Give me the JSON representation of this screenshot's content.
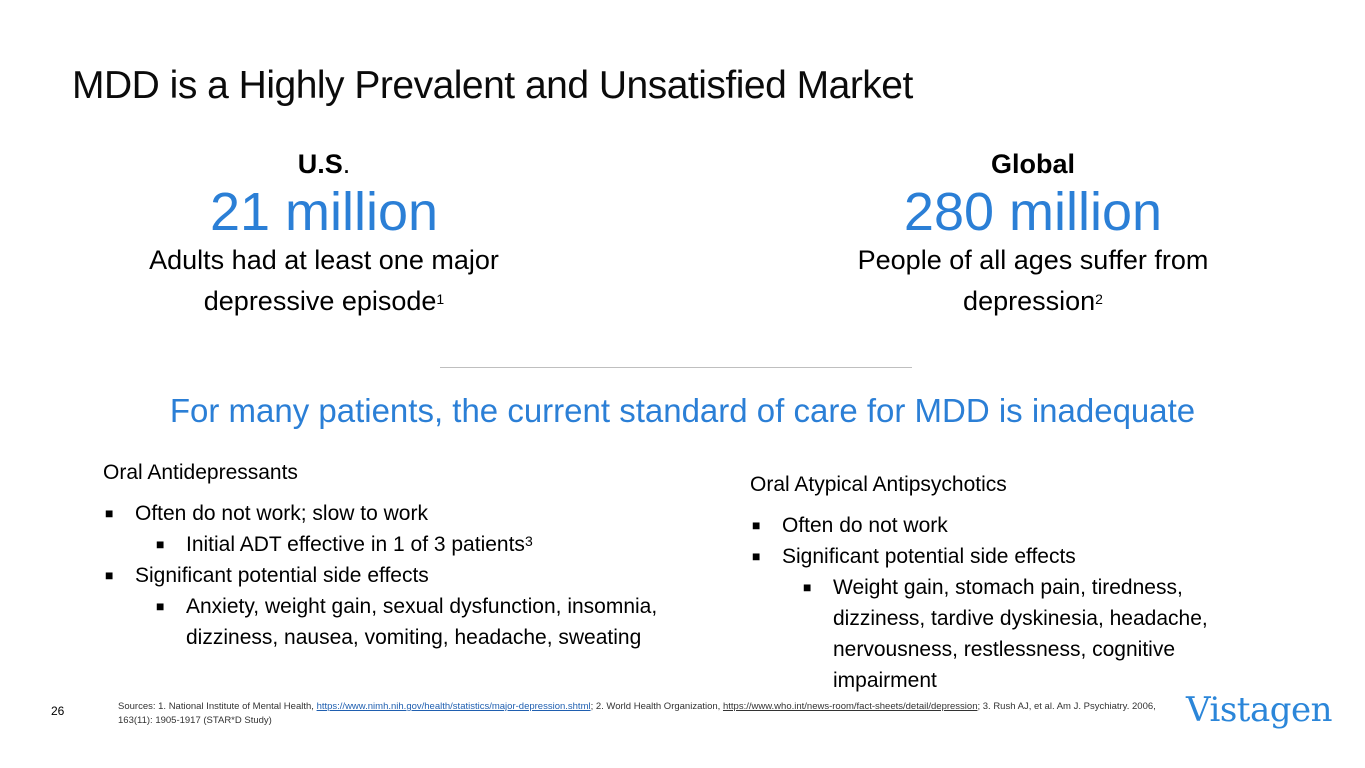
{
  "title": "MDD is a Highly Prevalent and Unsatisfied Market",
  "us": {
    "label": "U.S",
    "label_dot": ".",
    "number": "21 million",
    "desc_line1": "Adults had at least one major",
    "desc_line2": "depressive episode",
    "ref": "1"
  },
  "global": {
    "label": "Global",
    "number": "280 million",
    "desc_line1": "People of all ages suffer from",
    "desc_line2": "depression",
    "ref": "2"
  },
  "headline": "For many patients, the current standard of care for MDD is inadequate",
  "left": {
    "heading": "Oral Antidepressants",
    "b1": "Often do not work; slow to work",
    "b1a": "Initial ADT effective in 1 of 3 patients",
    "b1a_ref": "3",
    "b2": "Significant potential side effects",
    "b2a": "Anxiety, weight gain, sexual dysfunction, insomnia, dizziness, nausea, vomiting, headache, sweating"
  },
  "right": {
    "heading": "Oral Atypical Antipsychotics",
    "b1": "Often do not work",
    "b2": "Significant potential side effects",
    "b2a": "Weight gain, stomach pain, tiredness, dizziness, tardive dyskinesia, headache, nervousness, restlessness, cognitive impairment"
  },
  "bullet_glyph": "■",
  "page_number": "26",
  "sources": {
    "prefix": "Sources: 1. National Institute of Mental Health, ",
    "link1": "https://www.nimh.nih.gov/health/statistics/major-depression.shtml",
    "mid": "; 2. World Health Organization, ",
    "link2": "https://www.who.int/news-room/fact-sheets/detail/depression",
    "suffix": "; 3. Rush AJ, et al. Am J. Psychiatry. 2006, 163(11): 1905-1917 (STAR*D Study)"
  },
  "logo": "Vistagen",
  "colors": {
    "accent": "#2b7fd6",
    "logo": "#2b86d9",
    "divider": "#bfbfbf"
  }
}
